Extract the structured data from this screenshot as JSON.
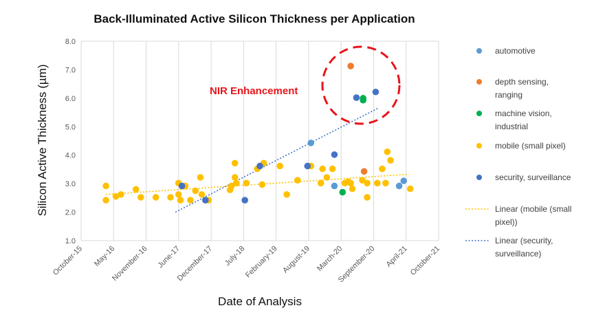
{
  "chart_data": {
    "type": "scatter",
    "title": "Back-Illuminated Active Silicon Thickness per Application",
    "xlabel": "Date of Analysis",
    "ylabel": "Silicon Active Thickness (µm)",
    "xticks": [
      "October-15",
      "May-16",
      "November-16",
      "June-17",
      "December-17",
      "July-18",
      "February-19",
      "August-19",
      "March-20",
      "September-20",
      "April-21",
      "October-21"
    ],
    "xlim": [
      "2015-10",
      "2021-10"
    ],
    "ylim": [
      1.0,
      8.0
    ],
    "yticks": [
      "1.0",
      "2.0",
      "3.0",
      "4.0",
      "5.0",
      "6.0",
      "7.0",
      "8.0"
    ],
    "grid": "vertical",
    "legend_position": "right",
    "annotation": "NIR Enhancement",
    "series": [
      {
        "name": "automotive",
        "color": "#5b9bd5",
        "points": [
          {
            "x": "2019-08-10",
            "y": 4.43
          },
          {
            "x": "2020-01-01",
            "y": 2.92
          },
          {
            "x": "2021-02-01",
            "y": 2.92
          },
          {
            "x": "2021-03-01",
            "y": 3.1
          }
        ]
      },
      {
        "name": "depth sensing, ranging",
        "color": "#ed7d31",
        "points": [
          {
            "x": "2020-04-10",
            "y": 7.13
          },
          {
            "x": "2020-07-01",
            "y": 3.43
          }
        ]
      },
      {
        "name": "machine vision, industrial",
        "color": "#00b050",
        "points": [
          {
            "x": "2020-02-20",
            "y": 2.7
          },
          {
            "x": "2020-06-25",
            "y": 6.0
          },
          {
            "x": "2020-06-25",
            "y": 5.93
          }
        ]
      },
      {
        "name": "mobile (small pixel)",
        "color": "#ffc000",
        "points": [
          {
            "x": "2016-03-01",
            "y": 2.92
          },
          {
            "x": "2016-03-01",
            "y": 2.42
          },
          {
            "x": "2016-05-01",
            "y": 2.55
          },
          {
            "x": "2016-06-01",
            "y": 2.62
          },
          {
            "x": "2016-09-01",
            "y": 2.8
          },
          {
            "x": "2016-10-01",
            "y": 2.52
          },
          {
            "x": "2017-01-01",
            "y": 2.52
          },
          {
            "x": "2017-04-01",
            "y": 2.52
          },
          {
            "x": "2017-05-20",
            "y": 3.02
          },
          {
            "x": "2017-05-20",
            "y": 2.62
          },
          {
            "x": "2017-06-01",
            "y": 2.42
          },
          {
            "x": "2017-07-01",
            "y": 2.92
          },
          {
            "x": "2017-08-01",
            "y": 2.42
          },
          {
            "x": "2017-09-01",
            "y": 2.75
          },
          {
            "x": "2017-10-01",
            "y": 3.22
          },
          {
            "x": "2017-10-10",
            "y": 2.62
          },
          {
            "x": "2017-11-20",
            "y": 2.42
          },
          {
            "x": "2018-04-01",
            "y": 2.78
          },
          {
            "x": "2018-04-10",
            "y": 2.92
          },
          {
            "x": "2018-05-01",
            "y": 3.72
          },
          {
            "x": "2018-05-01",
            "y": 3.22
          },
          {
            "x": "2018-05-10",
            "y": 3.02
          },
          {
            "x": "2018-07-10",
            "y": 3.02
          },
          {
            "x": "2018-09-15",
            "y": 3.52
          },
          {
            "x": "2018-10-15",
            "y": 2.97
          },
          {
            "x": "2018-10-25",
            "y": 3.72
          },
          {
            "x": "2019-02-01",
            "y": 3.62
          },
          {
            "x": "2019-03-15",
            "y": 2.62
          },
          {
            "x": "2019-05-20",
            "y": 3.12
          },
          {
            "x": "2019-08-10",
            "y": 3.62
          },
          {
            "x": "2019-10-10",
            "y": 3.02
          },
          {
            "x": "2019-10-20",
            "y": 3.52
          },
          {
            "x": "2019-11-15",
            "y": 3.22
          },
          {
            "x": "2019-12-20",
            "y": 3.52
          },
          {
            "x": "2020-03-05",
            "y": 3.02
          },
          {
            "x": "2020-03-25",
            "y": 3.07
          },
          {
            "x": "2020-04-10",
            "y": 3.02
          },
          {
            "x": "2020-04-20",
            "y": 2.82
          },
          {
            "x": "2020-06-20",
            "y": 3.12
          },
          {
            "x": "2020-07-20",
            "y": 2.52
          },
          {
            "x": "2020-07-20",
            "y": 3.02
          },
          {
            "x": "2020-09-20",
            "y": 3.02
          },
          {
            "x": "2020-10-20",
            "y": 3.52
          },
          {
            "x": "2020-11-10",
            "y": 3.02
          },
          {
            "x": "2020-11-20",
            "y": 4.12
          },
          {
            "x": "2020-12-10",
            "y": 3.82
          },
          {
            "x": "2021-04-10",
            "y": 2.82
          }
        ]
      },
      {
        "name": "security, surveillance",
        "color": "#4472c4",
        "points": [
          {
            "x": "2017-06-10",
            "y": 2.92
          },
          {
            "x": "2017-11-01",
            "y": 2.42
          },
          {
            "x": "2018-07-01",
            "y": 2.42
          },
          {
            "x": "2018-10-01",
            "y": 3.62
          },
          {
            "x": "2019-07-20",
            "y": 3.62
          },
          {
            "x": "2020-01-01",
            "y": 4.02
          },
          {
            "x": "2020-05-15",
            "y": 6.02
          },
          {
            "x": "2020-09-10",
            "y": 6.22
          }
        ]
      }
    ],
    "trendlines": [
      {
        "name": "Linear (mobile (small pixel))",
        "color": "#ffc000",
        "from": {
          "x": "2016-03-01",
          "y": 2.62
        },
        "to": {
          "x": "2021-04-01",
          "y": 3.33
        }
      },
      {
        "name": "Linear (security, surveillance)",
        "color": "#4472c4",
        "from": {
          "x": "2017-05-01",
          "y": 2.0
        },
        "to": {
          "x": "2020-09-25",
          "y": 5.65
        }
      }
    ]
  }
}
